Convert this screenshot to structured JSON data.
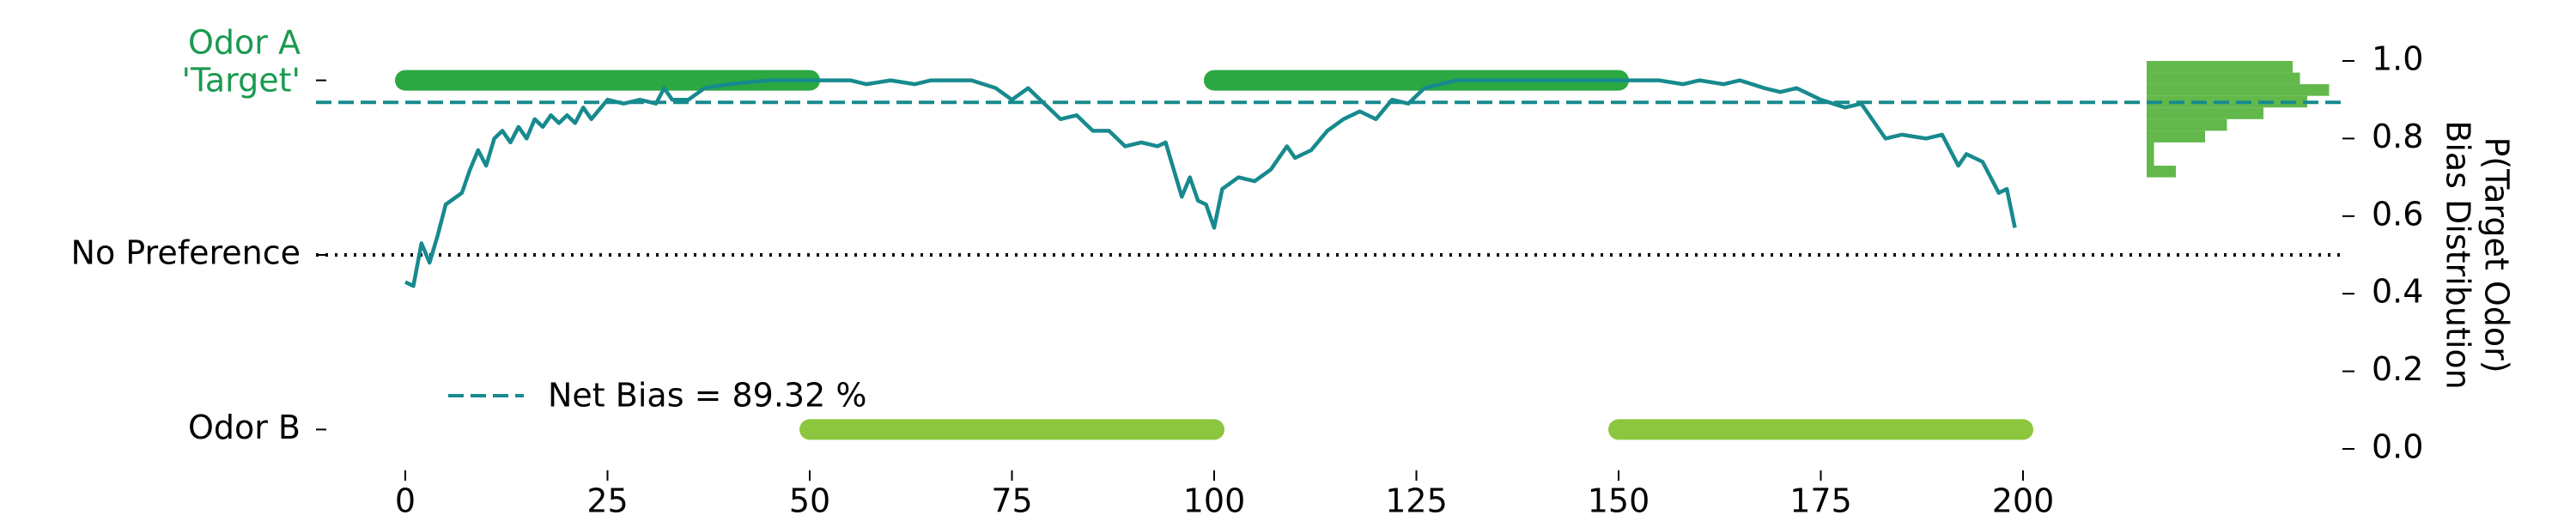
{
  "chart_data": {
    "type": "line",
    "x": [
      0,
      1,
      2,
      3,
      4,
      5,
      7,
      8,
      9,
      10,
      11,
      12,
      13,
      14,
      15,
      16,
      17,
      18,
      19,
      20,
      21,
      22,
      23,
      25,
      27,
      29,
      31,
      32,
      33,
      35,
      37,
      40,
      45,
      50,
      55,
      57,
      60,
      63,
      65,
      70,
      73,
      75,
      77,
      79,
      81,
      83,
      85,
      87,
      89,
      91,
      93,
      94,
      95,
      96,
      97,
      98,
      99,
      100,
      101,
      103,
      105,
      107,
      109,
      110,
      112,
      114,
      116,
      118,
      120,
      122,
      124,
      126,
      128,
      130,
      135,
      140,
      145,
      150,
      155,
      158,
      160,
      163,
      165,
      168,
      170,
      172,
      175,
      178,
      180,
      183,
      185,
      188,
      190,
      192,
      193,
      195,
      197,
      198,
      199
    ],
    "series": [
      {
        "name": "P(Target Odor)",
        "color": "#178a8e",
        "values": [
          0.43,
          0.42,
          0.53,
          0.48,
          0.55,
          0.63,
          0.66,
          0.72,
          0.77,
          0.73,
          0.8,
          0.82,
          0.79,
          0.83,
          0.8,
          0.85,
          0.83,
          0.86,
          0.84,
          0.86,
          0.84,
          0.88,
          0.85,
          0.9,
          0.89,
          0.9,
          0.89,
          0.93,
          0.9,
          0.9,
          0.93,
          0.94,
          0.95,
          0.95,
          0.95,
          0.94,
          0.95,
          0.94,
          0.95,
          0.95,
          0.93,
          0.9,
          0.93,
          0.89,
          0.85,
          0.86,
          0.82,
          0.82,
          0.78,
          0.79,
          0.78,
          0.79,
          0.72,
          0.65,
          0.7,
          0.64,
          0.63,
          0.57,
          0.67,
          0.7,
          0.69,
          0.72,
          0.78,
          0.75,
          0.77,
          0.82,
          0.85,
          0.87,
          0.85,
          0.9,
          0.89,
          0.93,
          0.94,
          0.95,
          0.95,
          0.95,
          0.95,
          0.95,
          0.95,
          0.94,
          0.95,
          0.94,
          0.95,
          0.93,
          0.92,
          0.93,
          0.9,
          0.88,
          0.89,
          0.8,
          0.81,
          0.8,
          0.81,
          0.73,
          0.76,
          0.74,
          0.66,
          0.67,
          0.57
        ]
      }
    ],
    "xlim": [
      0,
      200
    ],
    "xticks": [
      0,
      25,
      50,
      75,
      100,
      125,
      150,
      175,
      200
    ],
    "ylim": [
      0,
      1
    ],
    "yticks": [
      {
        "value": 0,
        "label": "0.0"
      },
      {
        "value": 0.2,
        "label": "0.2"
      },
      {
        "value": 0.4,
        "label": "0.4"
      },
      {
        "value": 0.6,
        "label": "0.6"
      },
      {
        "value": 0.8,
        "label": "0.8"
      },
      {
        "value": 1,
        "label": "1.0"
      }
    ],
    "ylabel": "P(Target Odor)",
    "ylabel2": "Bias Distribution",
    "left_ticks": [
      {
        "value": 0.95,
        "label": [
          "Odor A",
          "'Target'"
        ],
        "color": "#1a9a50"
      },
      {
        "value": 0.5,
        "label": "No Preference",
        "color": "#000000"
      },
      {
        "value": 0.05,
        "label": "Odor B",
        "color": "#000000"
      }
    ],
    "odor_a": {
      "color": "#2ca843",
      "periods": [
        [
          0,
          50
        ],
        [
          100,
          150
        ]
      ]
    },
    "odor_b": {
      "color": "#8cc63f",
      "periods": [
        [
          50,
          100
        ],
        [
          150,
          200
        ]
      ]
    },
    "net_bias": {
      "value": 0.8932,
      "label": "Net Bias = 89.32 %"
    },
    "histogram": {
      "color": "#62b84a",
      "bins": [
        0.7,
        0.73,
        0.76,
        0.79,
        0.82,
        0.85,
        0.88,
        0.91,
        0.94,
        0.97,
        1.0
      ],
      "counts": [
        4,
        1,
        1,
        8,
        11,
        16,
        22,
        25,
        21,
        20
      ]
    }
  }
}
